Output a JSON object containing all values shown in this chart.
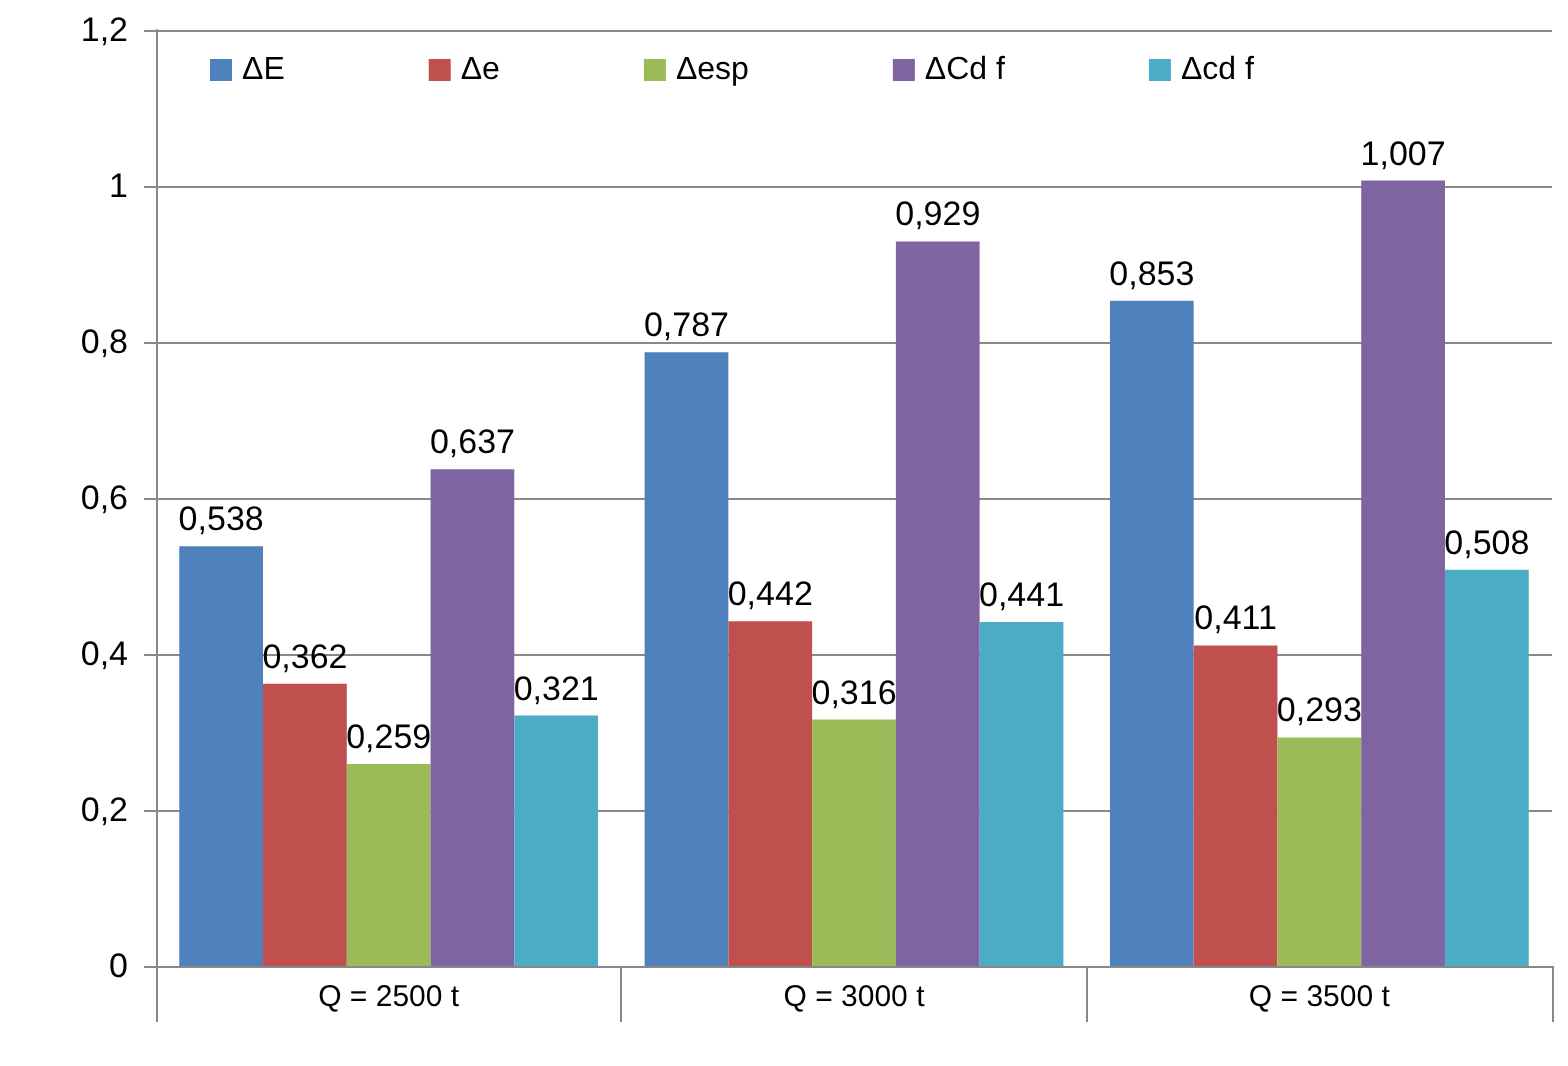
{
  "chart_data": {
    "type": "bar",
    "categories": [
      "Q = 2500 t",
      "Q = 3000 t",
      "Q = 3500 t"
    ],
    "series": [
      {
        "name": "ΔE",
        "color": "#4f81bd",
        "values": [
          0.538,
          0.787,
          0.853
        ],
        "value_labels": [
          "0,538",
          "0,787",
          "0,853"
        ]
      },
      {
        "name": "Δe",
        "color": "#c0504d",
        "values": [
          0.362,
          0.442,
          0.411
        ],
        "value_labels": [
          "0,362",
          "0,442",
          "0,411"
        ]
      },
      {
        "name": "Δesp",
        "color": "#9bbb59",
        "values": [
          0.259,
          0.316,
          0.293
        ],
        "value_labels": [
          "0,259",
          "0,316",
          "0,293"
        ]
      },
      {
        "name": "ΔCd f",
        "color": "#8064a2",
        "values": [
          0.637,
          0.929,
          1.007
        ],
        "value_labels": [
          "0,637",
          "0,929",
          "1,007"
        ]
      },
      {
        "name": "Δcd f",
        "color": "#4bacc6",
        "values": [
          0.321,
          0.441,
          0.508
        ],
        "value_labels": [
          "0,321",
          "0,441",
          "0,508"
        ]
      }
    ],
    "ylim": [
      0,
      1.2
    ],
    "yticks": [
      0,
      {
        "value": 0.2,
        "label": "0,2"
      },
      {
        "value": 0.4,
        "label": "0,4"
      },
      {
        "value": 0.6,
        "label": "0,6"
      },
      {
        "value": 0.8,
        "label": "0,8"
      },
      1,
      {
        "value": 1.2,
        "label": "1,2"
      }
    ],
    "grid": "y",
    "legend": "top"
  }
}
